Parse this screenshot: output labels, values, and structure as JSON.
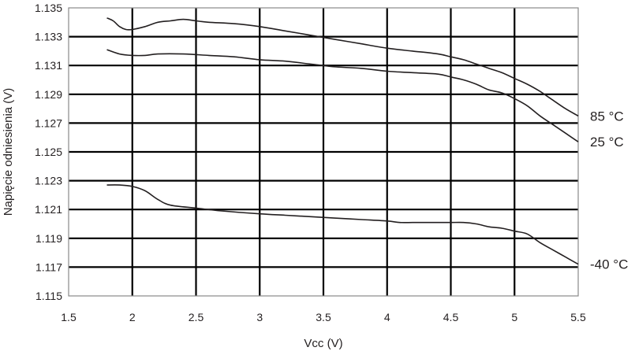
{
  "chart_data": {
    "type": "line",
    "title": "",
    "xlabel": "Vcc (V)",
    "ylabel": "Napięcie odniesienia (V)",
    "xlim": [
      1.5,
      5.5
    ],
    "ylim": [
      1.115,
      1.135
    ],
    "xticks": [
      "1.5",
      "2",
      "2.5",
      "3",
      "3.5",
      "4",
      "4.5",
      "5",
      "5.5"
    ],
    "yticks": [
      "1.115",
      "1.117",
      "1.119",
      "1.121",
      "1.123",
      "1.125",
      "1.127",
      "1.129",
      "1.131",
      "1.133",
      "1.135"
    ],
    "grid": true,
    "legend": "right-end labels",
    "colors": {
      "line": "#231f20",
      "grid": "#000000",
      "frame": "#888888"
    },
    "series": [
      {
        "name": "85 °C",
        "x": [
          1.8,
          1.85,
          1.9,
          1.95,
          2.0,
          2.1,
          2.2,
          2.3,
          2.4,
          2.5,
          2.6,
          2.8,
          3.0,
          3.2,
          3.4,
          3.6,
          3.8,
          4.0,
          4.2,
          4.4,
          4.5,
          4.6,
          4.7,
          4.8,
          4.9,
          5.0,
          5.1,
          5.2,
          5.3,
          5.4,
          5.5
        ],
        "values": [
          1.1343,
          1.1341,
          1.1337,
          1.1335,
          1.1335,
          1.1337,
          1.134,
          1.1341,
          1.1342,
          1.1341,
          1.134,
          1.1339,
          1.1337,
          1.1334,
          1.1331,
          1.1328,
          1.1325,
          1.1322,
          1.132,
          1.1318,
          1.1316,
          1.1314,
          1.1311,
          1.1308,
          1.1305,
          1.1301,
          1.1297,
          1.1292,
          1.1286,
          1.128,
          1.1275
        ]
      },
      {
        "name": "25 °C",
        "x": [
          1.8,
          1.9,
          2.0,
          2.1,
          2.2,
          2.4,
          2.6,
          2.8,
          3.0,
          3.2,
          3.4,
          3.6,
          3.8,
          4.0,
          4.2,
          4.4,
          4.5,
          4.6,
          4.7,
          4.8,
          4.9,
          5.0,
          5.1,
          5.2,
          5.3,
          5.4,
          5.5
        ],
        "values": [
          1.1321,
          1.1318,
          1.1317,
          1.1317,
          1.1318,
          1.1318,
          1.1317,
          1.1316,
          1.1314,
          1.1313,
          1.1311,
          1.1309,
          1.1308,
          1.1306,
          1.1305,
          1.1304,
          1.1302,
          1.13,
          1.1297,
          1.1293,
          1.1291,
          1.1287,
          1.1282,
          1.1275,
          1.1269,
          1.1263,
          1.1257
        ]
      },
      {
        "name": "-40 °C",
        "x": [
          1.8,
          1.9,
          2.0,
          2.1,
          2.2,
          2.3,
          2.5,
          2.7,
          3.0,
          3.2,
          3.4,
          3.6,
          3.8,
          4.0,
          4.1,
          4.2,
          4.3,
          4.4,
          4.5,
          4.6,
          4.7,
          4.8,
          4.9,
          5.0,
          5.1,
          5.2,
          5.3,
          5.4,
          5.5
        ],
        "values": [
          1.1227,
          1.1227,
          1.1226,
          1.1223,
          1.1217,
          1.1213,
          1.1211,
          1.1209,
          1.1207,
          1.1206,
          1.1205,
          1.1204,
          1.1203,
          1.1202,
          1.1201,
          1.1201,
          1.1201,
          1.1201,
          1.1201,
          1.1201,
          1.12,
          1.1198,
          1.1197,
          1.1195,
          1.1193,
          1.1187,
          1.1182,
          1.1177,
          1.1172
        ]
      }
    ]
  }
}
